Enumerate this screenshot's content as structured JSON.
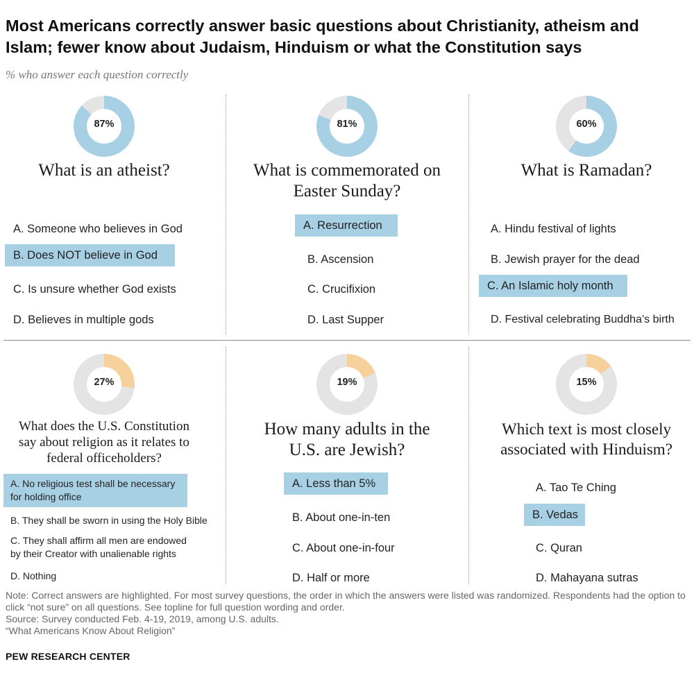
{
  "title": "Most Americans correctly answer basic questions about Christianity, atheism and Islam; fewer know about Judaism, Hinduism or what the Constitution says",
  "subtitle": "% who answer each question correctly",
  "colors": {
    "high_accent": "#a8d0e4",
    "low_accent": "#f6d19b",
    "remainder": "#e4e4e4",
    "highlight": "#a8d0e4"
  },
  "chart_data": [
    {
      "type": "pie",
      "value": 87,
      "label": "87%",
      "question": "What is an atheist?",
      "options": [
        "A. Someone who believes in God",
        "B. Does NOT believe in God",
        "C. Is unsure whether God exists",
        "D. Believes in multiple gods"
      ],
      "correct_index": 1
    },
    {
      "type": "pie",
      "value": 81,
      "label": "81%",
      "question": "What is commemorated on Easter Sunday?",
      "options": [
        "A. Resurrection",
        "B. Ascension",
        "C. Crucifixion",
        "D. Last Supper"
      ],
      "correct_index": 0
    },
    {
      "type": "pie",
      "value": 60,
      "label": "60%",
      "question": "What is Ramadan?",
      "options": [
        "A. Hindu festival of lights",
        "B. Jewish prayer for the dead",
        "C. An Islamic holy month",
        "D. Festival celebrating Buddha’s birth"
      ],
      "correct_index": 2
    },
    {
      "type": "pie",
      "value": 27,
      "label": "27%",
      "question": "What does the U.S. Constitution say about religion as it relates to federal officeholders?",
      "options": [
        "A. No religious test shall be necessary for holding office",
        "B. They shall be sworn in using the Holy Bible",
        "C. They shall affirm all men are endowed by their Creator with unalienable rights",
        "D. Nothing"
      ],
      "correct_index": 0
    },
    {
      "type": "pie",
      "value": 19,
      "label": "19%",
      "question": "How many adults in the U.S. are Jewish?",
      "options": [
        "A. Less than 5%",
        "B. About one-in-ten",
        "C. About one-in-four",
        "D. Half or more"
      ],
      "correct_index": 0
    },
    {
      "type": "pie",
      "value": 15,
      "label": "15%",
      "question": "Which text is most closely associated with Hinduism?",
      "options": [
        "A. Tao Te Ching",
        "B. Vedas",
        "C. Quran",
        "D. Mahayana sutras"
      ],
      "correct_index": 1
    }
  ],
  "notes": [
    "Note: Correct answers are highlighted. For most survey questions, the order in which the answers were listed was randomized. Respondents had the option to click “not sure” on all questions. See topline for full question wording and order.",
    "Source: Survey conducted Feb. 4-19, 2019, among U.S. adults.",
    "“What Americans Know About Religion”"
  ],
  "brand": "PEW RESEARCH CENTER"
}
